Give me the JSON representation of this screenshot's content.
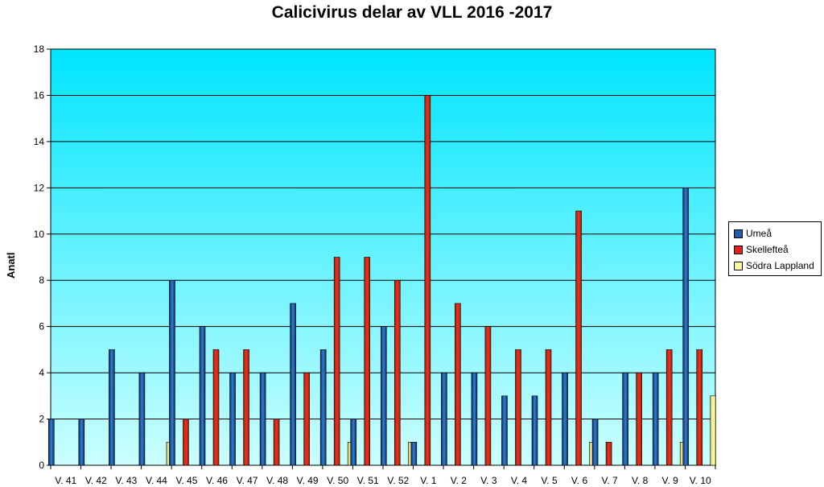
{
  "chart_data": {
    "type": "bar",
    "title": "Calicivirus delar av VLL 2016 -2017",
    "xlabel": "",
    "ylabel": "Anatl",
    "ylim": [
      0,
      18
    ],
    "yticks": [
      0,
      2,
      4,
      6,
      8,
      10,
      12,
      14,
      16,
      18
    ],
    "grid": true,
    "legend_position": "right",
    "categories": [
      "V. 41",
      "V. 42",
      "V. 43",
      "V. 44",
      "V. 45",
      "V. 46",
      "V. 47",
      "V. 48",
      "V. 49",
      "V. 50",
      "V. 51",
      "V. 52",
      "V. 1",
      "V. 2",
      "V. 3",
      "V. 4",
      "V. 5",
      "V. 6",
      "V. 7",
      "V. 8",
      "V. 9",
      "V. 10"
    ],
    "series": [
      {
        "name": "Umeå",
        "color": "#1f5fa8",
        "values": [
          2,
          2,
          5,
          4,
          8,
          6,
          4,
          4,
          7,
          5,
          2,
          6,
          1,
          4,
          4,
          3,
          3,
          4,
          2,
          4,
          4,
          12
        ]
      },
      {
        "name": "Skellefteå",
        "color": "#e8201a",
        "values": [
          0,
          0,
          0,
          0,
          2,
          5,
          5,
          2,
          4,
          9,
          9,
          8,
          16,
          7,
          6,
          5,
          5,
          11,
          1,
          4,
          5,
          5
        ]
      },
      {
        "name": "Södra Lappland",
        "color": "#ffff99",
        "values": [
          0,
          0,
          0,
          1,
          0,
          0,
          0,
          0,
          0,
          1,
          0,
          1,
          0,
          0,
          0,
          0,
          0,
          1,
          0,
          0,
          1,
          3
        ]
      }
    ],
    "plot_background": "#00e5ff"
  }
}
